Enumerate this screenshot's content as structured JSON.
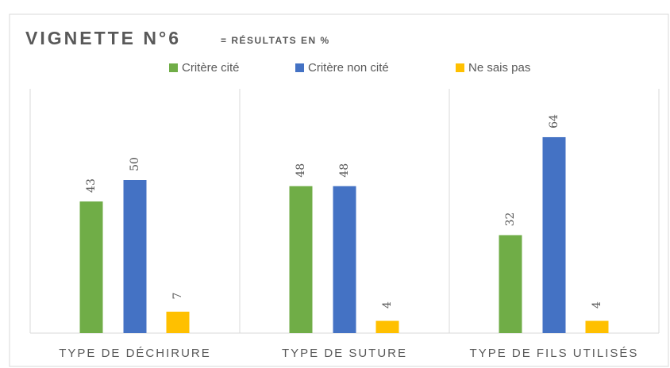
{
  "chart_data": {
    "type": "bar",
    "title": "VIGNETTE N°6",
    "subtitle": "= RÉSULTATS EN %",
    "categories": [
      "TYPE DE DÉCHIRURE",
      "TYPE DE SUTURE",
      "TYPE DE FILS UTILISÉS"
    ],
    "series": [
      {
        "name": "Critère cité",
        "color": "#70ad47",
        "values": [
          43,
          48,
          32
        ]
      },
      {
        "name": "Critère non cité",
        "color": "#4472c4",
        "values": [
          50,
          48,
          64
        ]
      },
      {
        "name": "Ne sais pas",
        "color": "#ffc000",
        "values": [
          7,
          4,
          4
        ]
      }
    ],
    "legend": "top"
  }
}
